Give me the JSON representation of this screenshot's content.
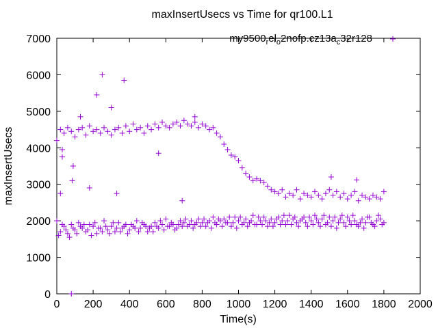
{
  "chart_data": {
    "type": "scatter",
    "title": "maxInsertUsecs vs Time for qr100.L1",
    "xlabel": "Time(s)",
    "ylabel": "maxInsertUsecs",
    "xlim": [
      0,
      2000
    ],
    "ylim": [
      0,
      7000
    ],
    "xticks": [
      0,
      200,
      400,
      600,
      800,
      1000,
      1200,
      1400,
      1600,
      1800,
      2000
    ],
    "yticks": [
      0,
      1000,
      2000,
      3000,
      4000,
      5000,
      6000,
      7000
    ],
    "grid": false,
    "legend_position": "top-right",
    "legend": {
      "prefix": "my9500",
      "sub1": "r",
      "mid1": "el",
      "sub2": "o",
      "mid2": "2nofp.cz13a",
      "sub3": "c",
      "suffix": "32r128"
    },
    "series": [
      {
        "name": "my9500_rel_o2nofp.cz13a_c32r128",
        "color": "#9400d3",
        "low_band": [
          [
            0,
            2000
          ],
          [
            20,
            1700
          ],
          [
            40,
            1850
          ],
          [
            60,
            1650
          ],
          [
            80,
            1900
          ],
          [
            100,
            1750
          ],
          [
            120,
            1950
          ],
          [
            140,
            1800
          ],
          [
            160,
            1700
          ],
          [
            180,
            1900
          ],
          [
            200,
            1850
          ],
          [
            220,
            1650
          ],
          [
            240,
            1800
          ],
          [
            260,
            2000
          ],
          [
            280,
            1750
          ],
          [
            300,
            1850
          ],
          [
            320,
            1700
          ],
          [
            340,
            1950
          ],
          [
            360,
            1800
          ],
          [
            380,
            1900
          ],
          [
            400,
            1750
          ],
          [
            420,
            1850
          ],
          [
            440,
            2000
          ],
          [
            460,
            1800
          ],
          [
            480,
            1900
          ],
          [
            500,
            1700
          ],
          [
            520,
            1850
          ],
          [
            540,
            1950
          ],
          [
            560,
            1800
          ],
          [
            580,
            1900
          ],
          [
            600,
            2050
          ],
          [
            620,
            1850
          ],
          [
            640,
            1900
          ],
          [
            660,
            1800
          ],
          [
            680,
            2000
          ],
          [
            700,
            1950
          ],
          [
            720,
            1850
          ],
          [
            740,
            2000
          ],
          [
            760,
            1900
          ],
          [
            780,
            2050
          ],
          [
            800,
            1950
          ],
          [
            820,
            1850
          ],
          [
            840,
            2000
          ],
          [
            860,
            2100
          ],
          [
            880,
            1900
          ],
          [
            900,
            2000
          ],
          [
            920,
            2050
          ],
          [
            940,
            1950
          ],
          [
            960,
            1850
          ],
          [
            980,
            2100
          ],
          [
            1000,
            2000
          ],
          [
            1020,
            1900
          ],
          [
            1040,
            2050
          ],
          [
            1060,
            1950
          ],
          [
            1080,
            2150
          ],
          [
            1100,
            1900
          ],
          [
            1120,
            2000
          ],
          [
            1140,
            2100
          ],
          [
            1160,
            1850
          ],
          [
            1180,
            2050
          ],
          [
            1200,
            1950
          ],
          [
            1220,
            2100
          ],
          [
            1240,
            2000
          ],
          [
            1260,
            1900
          ],
          [
            1280,
            2150
          ],
          [
            1300,
            2050
          ],
          [
            1320,
            1950
          ],
          [
            1340,
            2000
          ],
          [
            1360,
            2100
          ],
          [
            1380,
            1850
          ],
          [
            1400,
            2000
          ],
          [
            1420,
            2150
          ],
          [
            1440,
            1950
          ],
          [
            1460,
            2050
          ],
          [
            1480,
            1900
          ],
          [
            1500,
            2100
          ],
          [
            1520,
            2000
          ],
          [
            1540,
            1800
          ],
          [
            1560,
            2050
          ],
          [
            1580,
            1950
          ],
          [
            1600,
            2100
          ],
          [
            1620,
            1900
          ],
          [
            1640,
            2000
          ],
          [
            1660,
            1850
          ],
          [
            1680,
            2050
          ],
          [
            1700,
            1950
          ],
          [
            1720,
            2100
          ],
          [
            1740,
            1900
          ],
          [
            1760,
            2000
          ],
          [
            1780,
            2050
          ],
          [
            1800,
            1950
          ],
          [
            10,
            1600
          ],
          [
            30,
            1900
          ],
          [
            50,
            1750
          ],
          [
            70,
            1550
          ],
          [
            90,
            1800
          ],
          [
            110,
            1650
          ],
          [
            130,
            1850
          ],
          [
            150,
            1900
          ],
          [
            170,
            1750
          ],
          [
            190,
            1600
          ],
          [
            210,
            1950
          ],
          [
            230,
            1800
          ],
          [
            250,
            1700
          ],
          [
            270,
            1850
          ],
          [
            290,
            1650
          ],
          [
            310,
            1950
          ],
          [
            330,
            1800
          ],
          [
            350,
            1700
          ],
          [
            370,
            1850
          ],
          [
            390,
            1650
          ],
          [
            410,
            1900
          ],
          [
            430,
            1800
          ],
          [
            450,
            1700
          ],
          [
            470,
            1950
          ],
          [
            490,
            1850
          ],
          [
            510,
            1800
          ],
          [
            530,
            1700
          ],
          [
            550,
            1850
          ],
          [
            570,
            2000
          ],
          [
            590,
            1750
          ],
          [
            610,
            1850
          ],
          [
            630,
            1950
          ],
          [
            650,
            1750
          ],
          [
            670,
            1900
          ],
          [
            690,
            1850
          ],
          [
            710,
            2050
          ],
          [
            730,
            1900
          ],
          [
            750,
            1800
          ],
          [
            770,
            1950
          ],
          [
            790,
            1850
          ],
          [
            810,
            2050
          ],
          [
            830,
            1950
          ],
          [
            850,
            1800
          ],
          [
            870,
            1950
          ],
          [
            890,
            2050
          ],
          [
            910,
            1850
          ],
          [
            930,
            1950
          ],
          [
            950,
            2100
          ],
          [
            970,
            1950
          ],
          [
            990,
            1800
          ],
          [
            1010,
            2100
          ],
          [
            1030,
            1950
          ],
          [
            1050,
            1850
          ],
          [
            1070,
            2000
          ],
          [
            1090,
            1900
          ],
          [
            1110,
            2100
          ],
          [
            1130,
            1900
          ],
          [
            1150,
            2000
          ],
          [
            1170,
            1950
          ],
          [
            1190,
            1850
          ],
          [
            1210,
            2050
          ],
          [
            1230,
            1900
          ],
          [
            1250,
            2150
          ],
          [
            1270,
            2000
          ],
          [
            1290,
            1900
          ],
          [
            1310,
            2100
          ],
          [
            1330,
            1850
          ],
          [
            1350,
            2050
          ],
          [
            1370,
            1950
          ],
          [
            1390,
            2100
          ],
          [
            1410,
            1900
          ],
          [
            1430,
            2050
          ],
          [
            1450,
            1850
          ],
          [
            1470,
            2150
          ],
          [
            1490,
            1950
          ],
          [
            1510,
            1850
          ],
          [
            1530,
            2100
          ],
          [
            1550,
            1950
          ],
          [
            1570,
            2150
          ],
          [
            1590,
            1850
          ],
          [
            1610,
            2000
          ],
          [
            1630,
            2150
          ],
          [
            1650,
            1900
          ],
          [
            1670,
            1950
          ],
          [
            1690,
            1800
          ],
          [
            1710,
            2100
          ],
          [
            1730,
            1950
          ],
          [
            1750,
            1850
          ],
          [
            1770,
            2150
          ],
          [
            1790,
            1900
          ]
        ],
        "high_band": [
          [
            0,
            4200
          ],
          [
            20,
            4500
          ],
          [
            40,
            4400
          ],
          [
            60,
            4550
          ],
          [
            80,
            4450
          ],
          [
            100,
            4300
          ],
          [
            120,
            4500
          ],
          [
            140,
            4550
          ],
          [
            160,
            4350
          ],
          [
            180,
            4600
          ],
          [
            200,
            4450
          ],
          [
            220,
            4500
          ],
          [
            240,
            4400
          ],
          [
            260,
            4550
          ],
          [
            280,
            4450
          ],
          [
            300,
            4350
          ],
          [
            320,
            4500
          ],
          [
            340,
            4550
          ],
          [
            360,
            4400
          ],
          [
            380,
            4600
          ],
          [
            400,
            4450
          ],
          [
            420,
            4650
          ],
          [
            440,
            4500
          ],
          [
            460,
            4550
          ],
          [
            480,
            4400
          ],
          [
            500,
            4600
          ],
          [
            520,
            4500
          ],
          [
            540,
            4650
          ],
          [
            560,
            4550
          ],
          [
            580,
            4700
          ],
          [
            600,
            4600
          ],
          [
            620,
            4550
          ],
          [
            640,
            4650
          ],
          [
            660,
            4700
          ],
          [
            680,
            4600
          ],
          [
            700,
            4750
          ],
          [
            720,
            4650
          ],
          [
            740,
            4600
          ],
          [
            760,
            4700
          ],
          [
            780,
            4550
          ],
          [
            800,
            4650
          ],
          [
            820,
            4600
          ],
          [
            840,
            4500
          ],
          [
            860,
            4550
          ],
          [
            880,
            4400
          ],
          [
            900,
            4300
          ],
          [
            920,
            4100
          ],
          [
            940,
            3950
          ],
          [
            960,
            3800
          ],
          [
            980,
            3750
          ],
          [
            1000,
            3650
          ],
          [
            1020,
            3450
          ],
          [
            1040,
            3300
          ],
          [
            1060,
            3200
          ],
          [
            1080,
            3100
          ],
          [
            1100,
            3150
          ],
          [
            1120,
            3100
          ],
          [
            1140,
            3050
          ],
          [
            1160,
            2950
          ],
          [
            1180,
            2850
          ],
          [
            1200,
            2800
          ],
          [
            1220,
            2750
          ],
          [
            1240,
            2850
          ],
          [
            1260,
            2650
          ],
          [
            1280,
            2750
          ],
          [
            1300,
            2700
          ],
          [
            1320,
            2850
          ],
          [
            1340,
            2600
          ],
          [
            1360,
            2750
          ],
          [
            1380,
            2700
          ],
          [
            1400,
            2650
          ],
          [
            1420,
            2800
          ],
          [
            1440,
            2700
          ],
          [
            1460,
            2600
          ],
          [
            1480,
            2750
          ],
          [
            1500,
            2850
          ],
          [
            1520,
            2700
          ],
          [
            1540,
            2800
          ],
          [
            1560,
            2650
          ],
          [
            1580,
            2750
          ],
          [
            1600,
            2600
          ],
          [
            1620,
            2700
          ],
          [
            1640,
            2800
          ],
          [
            1660,
            2550
          ],
          [
            1680,
            2700
          ],
          [
            1700,
            2650
          ],
          [
            1720,
            2600
          ],
          [
            1740,
            2700
          ],
          [
            1760,
            2650
          ],
          [
            1780,
            2600
          ],
          [
            1800,
            2800
          ]
        ],
        "outliers": [
          [
            250,
            6000
          ],
          [
            220,
            5450
          ],
          [
            300,
            5100
          ],
          [
            370,
            5850
          ],
          [
            130,
            4850
          ],
          [
            90,
            3500
          ],
          [
            85,
            3100
          ],
          [
            180,
            2900
          ],
          [
            330,
            2750
          ],
          [
            560,
            3850
          ],
          [
            690,
            2550
          ],
          [
            80,
            0
          ],
          [
            20,
            2750
          ],
          [
            1510,
            3200
          ],
          [
            1650,
            3120
          ],
          [
            30,
            3950
          ],
          [
            30,
            3750
          ],
          [
            760,
            4850
          ]
        ]
      }
    ]
  }
}
